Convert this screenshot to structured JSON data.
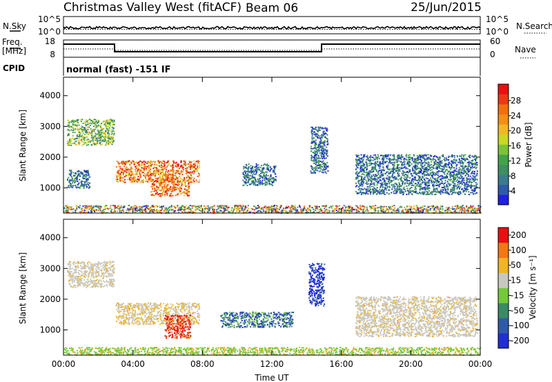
{
  "header": {
    "title": "Christmas Valley West (fitACF)",
    "beam": "Beam 06",
    "date": "25/Jun/2015"
  },
  "strip": {
    "nsky_label": "N.Sky",
    "nsky_ticks": [
      "10^5",
      "10^0"
    ],
    "nsearch_label": "N.Search",
    "nsearch_ticks": [
      "10^5",
      "10^0"
    ],
    "freq_label_1": "Freq.",
    "freq_label_2": "[MHz]",
    "freq_ticks": [
      "18",
      "8"
    ],
    "nave_label": "Nave",
    "nave_ticks": [
      "60",
      "0"
    ],
    "cpid_label": "CPID",
    "cpid_value": "normal (fast) -151 IF"
  },
  "chart_data": [
    {
      "type": "heatmap",
      "name": "power",
      "ylabel": "Slant Range [km]",
      "yticks": [
        1000,
        2000,
        3000,
        4000
      ],
      "ylim": [
        180,
        4600
      ],
      "xlim_hours": [
        0,
        24
      ],
      "colorbar": {
        "label": "Power [dB]",
        "ticks": [
          "28",
          "24",
          "20",
          "16",
          "12",
          "8",
          "4"
        ],
        "colors": [
          "#2020e0",
          "#2f5aa8",
          "#3a7c8e",
          "#3e8f62",
          "#42a34a",
          "#7cc23a",
          "#c8d824",
          "#f0b828",
          "#f09018",
          "#f07010",
          "#ec3818",
          "#e81010"
        ]
      },
      "echo_regions": [
        {
          "t0": 0.2,
          "t1": 2.9,
          "r0": 2400,
          "r1": 3250,
          "level": "mid"
        },
        {
          "t0": 0.2,
          "t1": 1.5,
          "r0": 1000,
          "r1": 1600,
          "level": "low"
        },
        {
          "t0": 3.0,
          "t1": 7.8,
          "r0": 1200,
          "r1": 1900,
          "level": "high"
        },
        {
          "t0": 5.0,
          "t1": 7.2,
          "r0": 750,
          "r1": 1300,
          "level": "high"
        },
        {
          "t0": 10.3,
          "t1": 12.2,
          "r0": 1100,
          "r1": 1800,
          "level": "low"
        },
        {
          "t0": 14.2,
          "t1": 15.2,
          "r0": 1500,
          "r1": 3000,
          "level": "low"
        },
        {
          "t0": 16.8,
          "t1": 23.8,
          "r0": 800,
          "r1": 2100,
          "level": "low"
        },
        {
          "t0": 0.0,
          "t1": 24.0,
          "r0": 200,
          "r1": 450,
          "level": "mixed"
        }
      ]
    },
    {
      "type": "heatmap",
      "name": "velocity",
      "ylabel": "Slant Range [km]",
      "yticks": [
        1000,
        2000,
        3000,
        4000
      ],
      "ylim": [
        180,
        4600
      ],
      "xlabel": "Time UT",
      "xticks": [
        "00:00",
        "04:00",
        "08:00",
        "12:00",
        "16:00",
        "20:00",
        "00:00"
      ],
      "xlim_hours": [
        0,
        24
      ],
      "colorbar": {
        "label": "Velocity [m s⁻¹]",
        "ticks": [
          "200",
          "100",
          "50",
          "15",
          "-15",
          "-50",
          "-100",
          "-200"
        ],
        "colors": [
          "#2030d0",
          "#2f5aa8",
          "#3a8a66",
          "#74c83c",
          "#c8c8c0",
          "#f0b428",
          "#f07818",
          "#e81010"
        ]
      },
      "echo_regions": [
        {
          "t0": 0.2,
          "t1": 2.9,
          "r0": 2400,
          "r1": 3250,
          "level": "grey"
        },
        {
          "t0": 3.0,
          "t1": 7.8,
          "r0": 1200,
          "r1": 1900,
          "level": "grey-orange"
        },
        {
          "t0": 5.8,
          "t1": 7.3,
          "r0": 750,
          "r1": 1500,
          "level": "red"
        },
        {
          "t0": 9.0,
          "t1": 13.2,
          "r0": 1100,
          "r1": 1600,
          "level": "blue-green"
        },
        {
          "t0": 14.1,
          "t1": 15.0,
          "r0": 1800,
          "r1": 3200,
          "level": "blue"
        },
        {
          "t0": 16.8,
          "t1": 23.8,
          "r0": 800,
          "r1": 2100,
          "level": "grey"
        },
        {
          "t0": 0.0,
          "t1": 24.0,
          "r0": 200,
          "r1": 450,
          "level": "green"
        }
      ]
    }
  ]
}
